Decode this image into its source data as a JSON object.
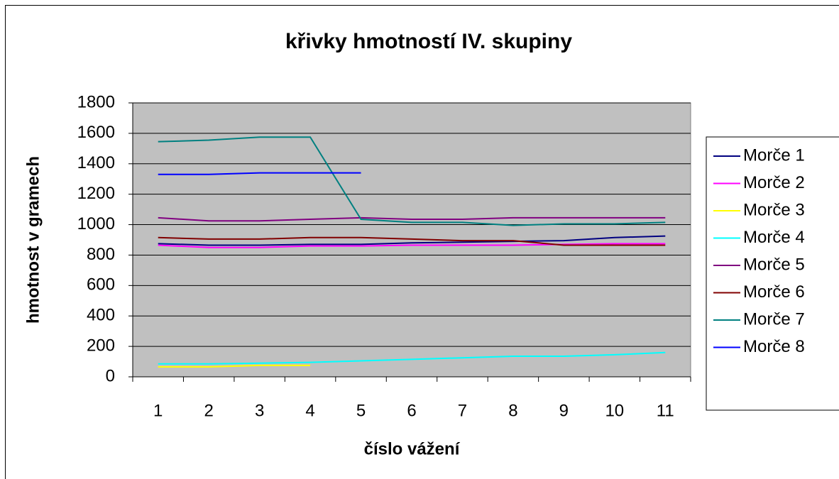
{
  "chart_data": {
    "type": "line",
    "title": "křivky hmotností IV. skupiny",
    "x_label": "číslo vážení",
    "y_label": "hmotnost v gramech",
    "categories": [
      "1",
      "2",
      "3",
      "4",
      "5",
      "6",
      "7",
      "8",
      "9",
      "10",
      "11"
    ],
    "series": [
      {
        "name": "Morče 1",
        "color": "#000080",
        "values": [
          875,
          865,
          865,
          870,
          870,
          880,
          885,
          890,
          895,
          915,
          925
        ]
      },
      {
        "name": "Morče 2",
        "color": "#ff00ff",
        "values": [
          865,
          850,
          850,
          860,
          860,
          865,
          865,
          865,
          870,
          875,
          875
        ]
      },
      {
        "name": "Morče 3",
        "color": "#ffff00",
        "values": [
          65,
          65,
          75,
          75,
          null,
          null,
          null,
          null,
          null,
          null,
          null
        ]
      },
      {
        "name": "Morče 4",
        "color": "#00ffff",
        "values": [
          85,
          85,
          90,
          95,
          105,
          115,
          125,
          135,
          135,
          145,
          160
        ]
      },
      {
        "name": "Morče 5",
        "color": "#800080",
        "values": [
          1045,
          1025,
          1025,
          1035,
          1045,
          1035,
          1035,
          1045,
          1045,
          1045,
          1045
        ]
      },
      {
        "name": "Morče 6",
        "color": "#800000",
        "values": [
          915,
          905,
          905,
          915,
          915,
          905,
          895,
          895,
          865,
          865,
          865
        ]
      },
      {
        "name": "Morče 7",
        "color": "#008080",
        "values": [
          1545,
          1555,
          1575,
          1575,
          1035,
          1015,
          1015,
          995,
          1005,
          1005,
          1015
        ]
      },
      {
        "name": "Morče 8",
        "color": "#0000ff",
        "values": [
          1330,
          1330,
          1340,
          1340,
          1340,
          null,
          null,
          null,
          null,
          null,
          null
        ]
      }
    ],
    "ylim": [
      0,
      1800
    ],
    "yticks": [
      0,
      200,
      400,
      600,
      800,
      1000,
      1200,
      1400,
      1600,
      1800
    ],
    "grid": true,
    "legend": "right",
    "plot_background": "#c0c0c0"
  }
}
